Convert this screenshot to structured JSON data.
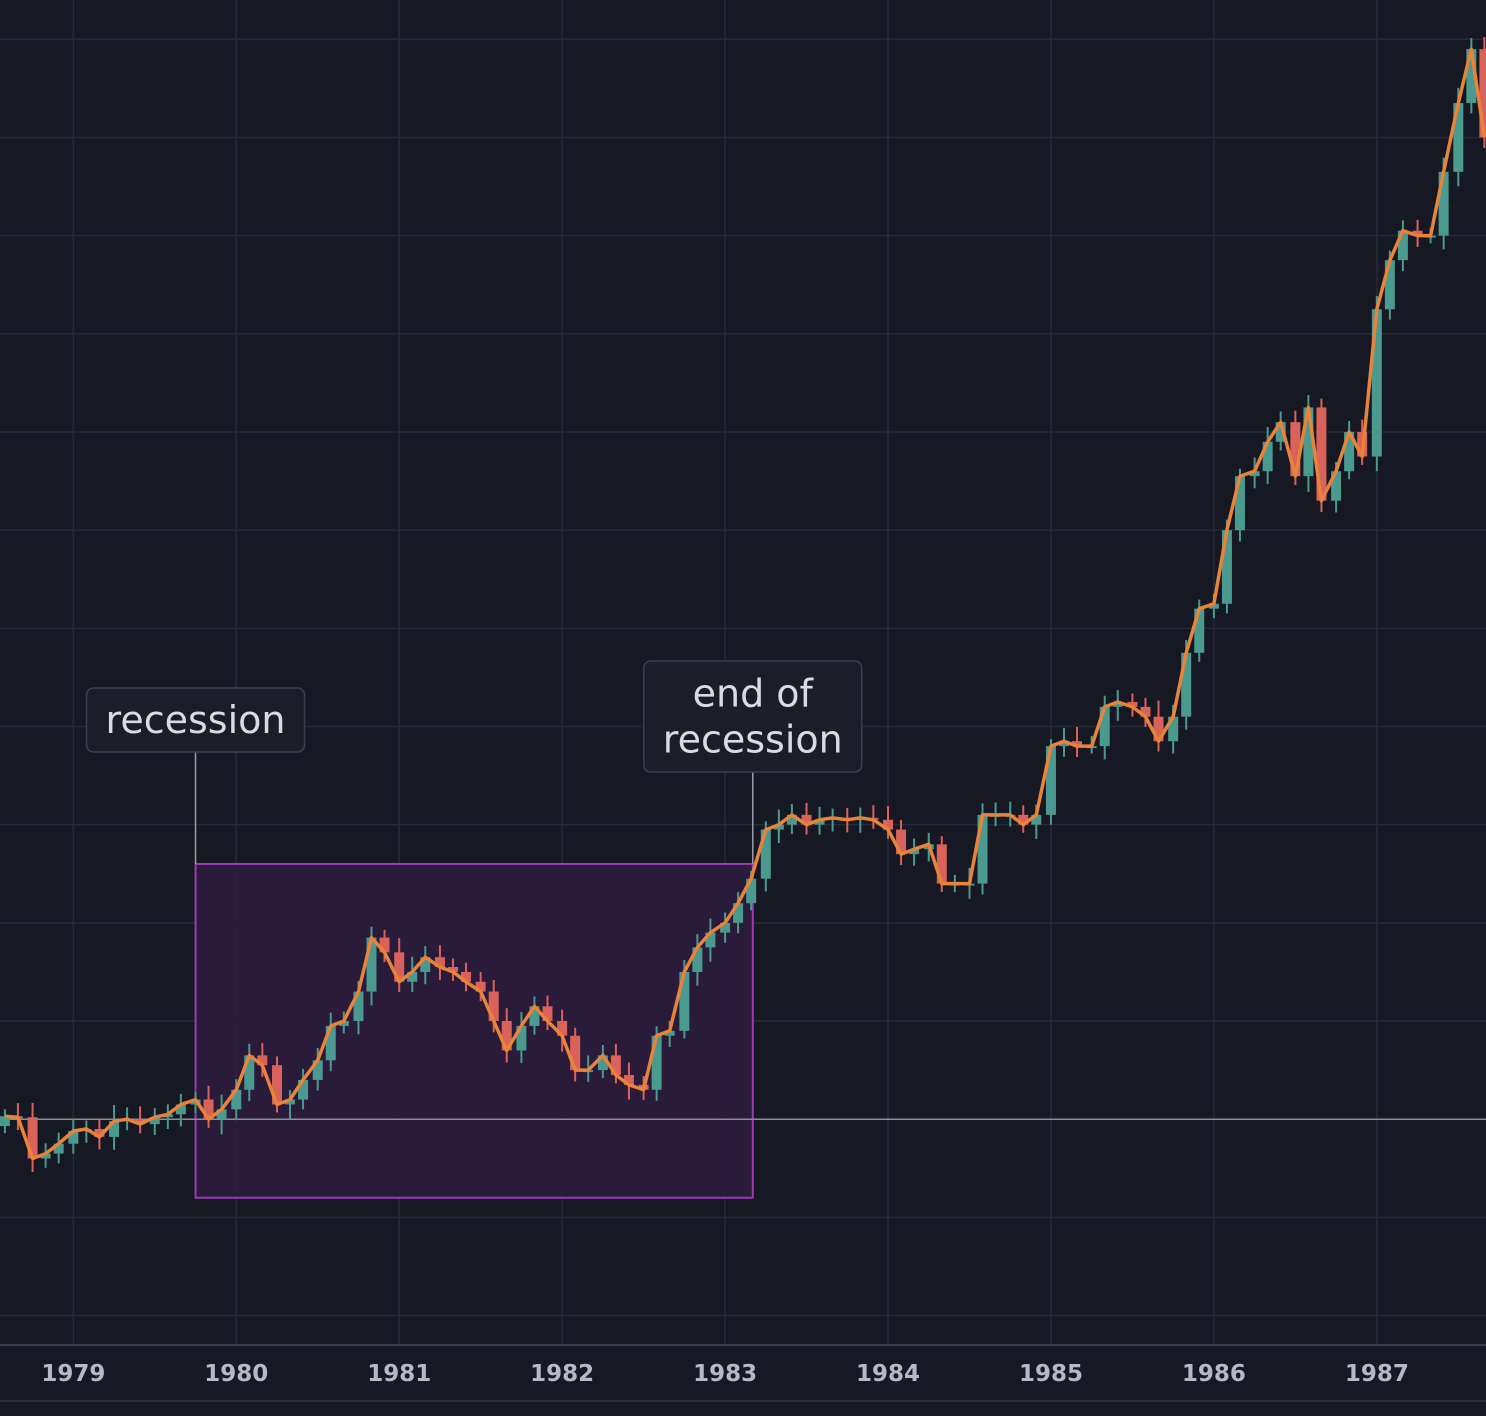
{
  "chart_data": {
    "type": "candlestick",
    "title": "",
    "xlabel": "",
    "ylabel": "",
    "x_ticks": [
      "1979",
      "1980",
      "1981",
      "1982",
      "1983",
      "1984",
      "1985",
      "1986",
      "1987"
    ],
    "x_range": [
      1978.55,
      1987.67
    ],
    "y_range": [
      -0.23,
      1.14
    ],
    "y_axis_labels_visible": false,
    "grid": true,
    "baseline_value": 0,
    "colors": {
      "background": "#161924",
      "grid": "#262a37",
      "up": "#4a9a8f",
      "down": "#d9625a",
      "line": "#e7833a",
      "baseline": "#8c8f99",
      "highlight_fill": "#2c1c3d",
      "highlight_stroke": "#9b3bb5",
      "annotation_stroke": "#3a3f4e"
    },
    "highlight_region": {
      "x_start": 1979.75,
      "x_end": 1983.17,
      "y_low": -0.08,
      "y_high": 0.26
    },
    "annotations": [
      {
        "text": [
          "recession"
        ],
        "x": 1979.75
      },
      {
        "text": [
          "end of",
          "recession"
        ],
        "x": 1983.17
      }
    ],
    "close_series": [
      [
        1978.58,
        0.003
      ],
      [
        1978.66,
        0.002
      ],
      [
        1978.75,
        -0.04
      ],
      [
        1978.83,
        -0.035
      ],
      [
        1978.91,
        -0.025
      ],
      [
        1979.0,
        -0.012
      ],
      [
        1979.08,
        -0.01
      ],
      [
        1979.16,
        -0.018
      ],
      [
        1979.25,
        -0.002
      ],
      [
        1979.33,
        0.0
      ],
      [
        1979.41,
        -0.005
      ],
      [
        1979.5,
        0.002
      ],
      [
        1979.58,
        0.005
      ],
      [
        1979.66,
        0.015
      ],
      [
        1979.75,
        0.02
      ],
      [
        1979.83,
        0.0
      ],
      [
        1979.91,
        0.01
      ],
      [
        1980.0,
        0.03
      ],
      [
        1980.08,
        0.065
      ],
      [
        1980.16,
        0.055
      ],
      [
        1980.25,
        0.015
      ],
      [
        1980.33,
        0.02
      ],
      [
        1980.41,
        0.04
      ],
      [
        1980.5,
        0.06
      ],
      [
        1980.58,
        0.095
      ],
      [
        1980.66,
        0.1
      ],
      [
        1980.75,
        0.13
      ],
      [
        1980.83,
        0.185
      ],
      [
        1980.91,
        0.17
      ],
      [
        1981.0,
        0.14
      ],
      [
        1981.08,
        0.15
      ],
      [
        1981.16,
        0.165
      ],
      [
        1981.25,
        0.155
      ],
      [
        1981.33,
        0.15
      ],
      [
        1981.41,
        0.14
      ],
      [
        1981.5,
        0.13
      ],
      [
        1981.58,
        0.1
      ],
      [
        1981.66,
        0.07
      ],
      [
        1981.75,
        0.095
      ],
      [
        1981.83,
        0.115
      ],
      [
        1981.91,
        0.1
      ],
      [
        1982.0,
        0.085
      ],
      [
        1982.08,
        0.05
      ],
      [
        1982.16,
        0.05
      ],
      [
        1982.25,
        0.065
      ],
      [
        1982.33,
        0.045
      ],
      [
        1982.41,
        0.035
      ],
      [
        1982.5,
        0.03
      ],
      [
        1982.58,
        0.085
      ],
      [
        1982.66,
        0.09
      ],
      [
        1982.75,
        0.15
      ],
      [
        1982.83,
        0.175
      ],
      [
        1982.91,
        0.19
      ],
      [
        1983.0,
        0.2
      ],
      [
        1983.08,
        0.22
      ],
      [
        1983.16,
        0.245
      ],
      [
        1983.25,
        0.295
      ],
      [
        1983.33,
        0.3
      ],
      [
        1983.41,
        0.31
      ],
      [
        1983.5,
        0.3
      ],
      [
        1983.58,
        0.305
      ],
      [
        1983.66,
        0.307
      ],
      [
        1983.75,
        0.305
      ],
      [
        1983.83,
        0.307
      ],
      [
        1983.91,
        0.305
      ],
      [
        1984.0,
        0.295
      ],
      [
        1984.08,
        0.27
      ],
      [
        1984.16,
        0.275
      ],
      [
        1984.25,
        0.28
      ],
      [
        1984.33,
        0.24
      ],
      [
        1984.41,
        0.24
      ],
      [
        1984.5,
        0.24
      ],
      [
        1984.58,
        0.31
      ],
      [
        1984.66,
        0.31
      ],
      [
        1984.75,
        0.31
      ],
      [
        1984.83,
        0.3
      ],
      [
        1984.91,
        0.31
      ],
      [
        1985.0,
        0.38
      ],
      [
        1985.08,
        0.385
      ],
      [
        1985.16,
        0.38
      ],
      [
        1985.25,
        0.38
      ],
      [
        1985.33,
        0.42
      ],
      [
        1985.41,
        0.425
      ],
      [
        1985.5,
        0.42
      ],
      [
        1985.58,
        0.41
      ],
      [
        1985.66,
        0.385
      ],
      [
        1985.75,
        0.41
      ],
      [
        1985.83,
        0.475
      ],
      [
        1985.91,
        0.52
      ],
      [
        1986.0,
        0.525
      ],
      [
        1986.08,
        0.6
      ],
      [
        1986.16,
        0.655
      ],
      [
        1986.25,
        0.66
      ],
      [
        1986.33,
        0.69
      ],
      [
        1986.41,
        0.71
      ],
      [
        1986.5,
        0.655
      ],
      [
        1986.58,
        0.725
      ],
      [
        1986.66,
        0.63
      ],
      [
        1986.75,
        0.66
      ],
      [
        1986.83,
        0.7
      ],
      [
        1986.91,
        0.675
      ],
      [
        1987.0,
        0.825
      ],
      [
        1987.08,
        0.875
      ],
      [
        1987.16,
        0.905
      ],
      [
        1987.25,
        0.9
      ],
      [
        1987.33,
        0.9
      ],
      [
        1987.41,
        0.965
      ],
      [
        1987.5,
        1.035
      ],
      [
        1987.58,
        1.09
      ],
      [
        1987.66,
        1.0
      ]
    ]
  }
}
